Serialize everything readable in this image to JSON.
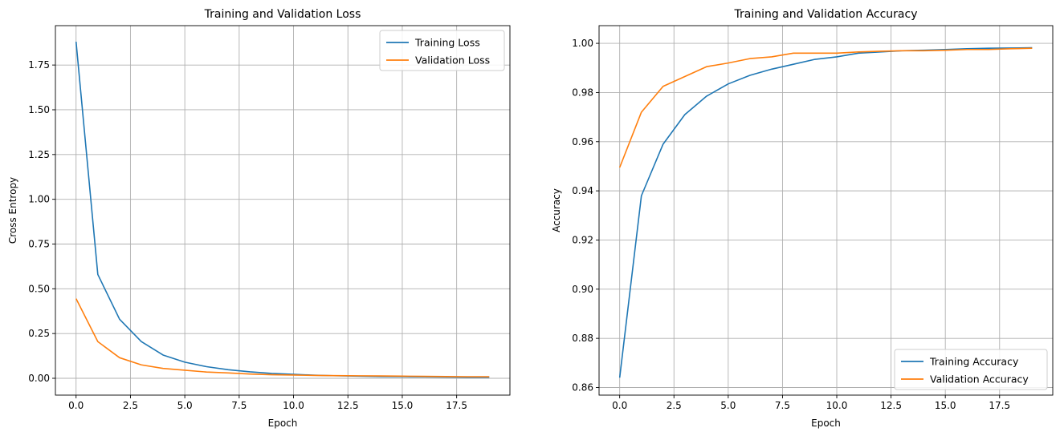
{
  "chart_data": [
    {
      "type": "line",
      "title": "Training and Validation Loss",
      "xlabel": "Epoch",
      "ylabel": "Cross Entropy",
      "xlim": [
        -0.95,
        19.95
      ],
      "ylim": [
        -0.094,
        1.97
      ],
      "xticks": [
        0,
        2.5,
        5,
        7.5,
        10,
        12.5,
        15,
        17.5
      ],
      "xtick_labels": [
        "0.0",
        "2.5",
        "5.0",
        "7.5",
        "10.0",
        "12.5",
        "15.0",
        "17.5"
      ],
      "yticks": [
        0,
        0.25,
        0.5,
        0.75,
        1.0,
        1.25,
        1.5,
        1.75
      ],
      "ytick_labels": [
        "0.00",
        "0.25",
        "0.50",
        "0.75",
        "1.00",
        "1.25",
        "1.50",
        "1.75"
      ],
      "grid": true,
      "legend_position": "upper-right",
      "x": [
        0,
        1,
        2,
        3,
        4,
        5,
        6,
        7,
        8,
        9,
        10,
        11,
        12,
        13,
        14,
        15,
        16,
        17,
        18,
        19
      ],
      "series": [
        {
          "name": "Training Loss",
          "color": "#1f77b4",
          "values": [
            1.88,
            0.58,
            0.33,
            0.205,
            0.13,
            0.09,
            0.065,
            0.048,
            0.036,
            0.027,
            0.022,
            0.017,
            0.014,
            0.012,
            0.01,
            0.009,
            0.008,
            0.007,
            0.006,
            0.006
          ]
        },
        {
          "name": "Validation Loss",
          "color": "#ff7f0e",
          "values": [
            0.445,
            0.205,
            0.115,
            0.075,
            0.055,
            0.045,
            0.035,
            0.03,
            0.024,
            0.02,
            0.018,
            0.016,
            0.015,
            0.014,
            0.013,
            0.012,
            0.011,
            0.01,
            0.009,
            0.009
          ]
        }
      ]
    },
    {
      "type": "line",
      "title": "Training and Validation Accuracy",
      "xlabel": "Epoch",
      "ylabel": "Accuracy",
      "xlim": [
        -0.95,
        19.95
      ],
      "ylim": [
        0.8569,
        1.0072
      ],
      "xticks": [
        0,
        2.5,
        5,
        7.5,
        10,
        12.5,
        15,
        17.5
      ],
      "xtick_labels": [
        "0.0",
        "2.5",
        "5.0",
        "7.5",
        "10.0",
        "12.5",
        "15.0",
        "17.5"
      ],
      "yticks": [
        0.86,
        0.88,
        0.9,
        0.92,
        0.94,
        0.96,
        0.98,
        1.0
      ],
      "ytick_labels": [
        "0.86",
        "0.88",
        "0.90",
        "0.92",
        "0.94",
        "0.96",
        "0.98",
        "1.00"
      ],
      "grid": true,
      "legend_position": "lower-right",
      "x": [
        0,
        1,
        2,
        3,
        4,
        5,
        6,
        7,
        8,
        9,
        10,
        11,
        12,
        13,
        14,
        15,
        16,
        17,
        18,
        19
      ],
      "series": [
        {
          "name": "Training Accuracy",
          "color": "#1f77b4",
          "values": [
            0.864,
            0.938,
            0.959,
            0.971,
            0.9785,
            0.9835,
            0.987,
            0.9895,
            0.9915,
            0.9935,
            0.9945,
            0.996,
            0.9965,
            0.997,
            0.9972,
            0.9975,
            0.9978,
            0.998,
            0.9981,
            0.9982
          ]
        },
        {
          "name": "Validation Accuracy",
          "color": "#ff7f0e",
          "values": [
            0.9495,
            0.972,
            0.9825,
            0.9865,
            0.9905,
            0.992,
            0.9938,
            0.9945,
            0.996,
            0.996,
            0.996,
            0.9965,
            0.9968,
            0.997,
            0.997,
            0.9972,
            0.9975,
            0.9975,
            0.9978,
            0.998
          ]
        }
      ]
    }
  ]
}
